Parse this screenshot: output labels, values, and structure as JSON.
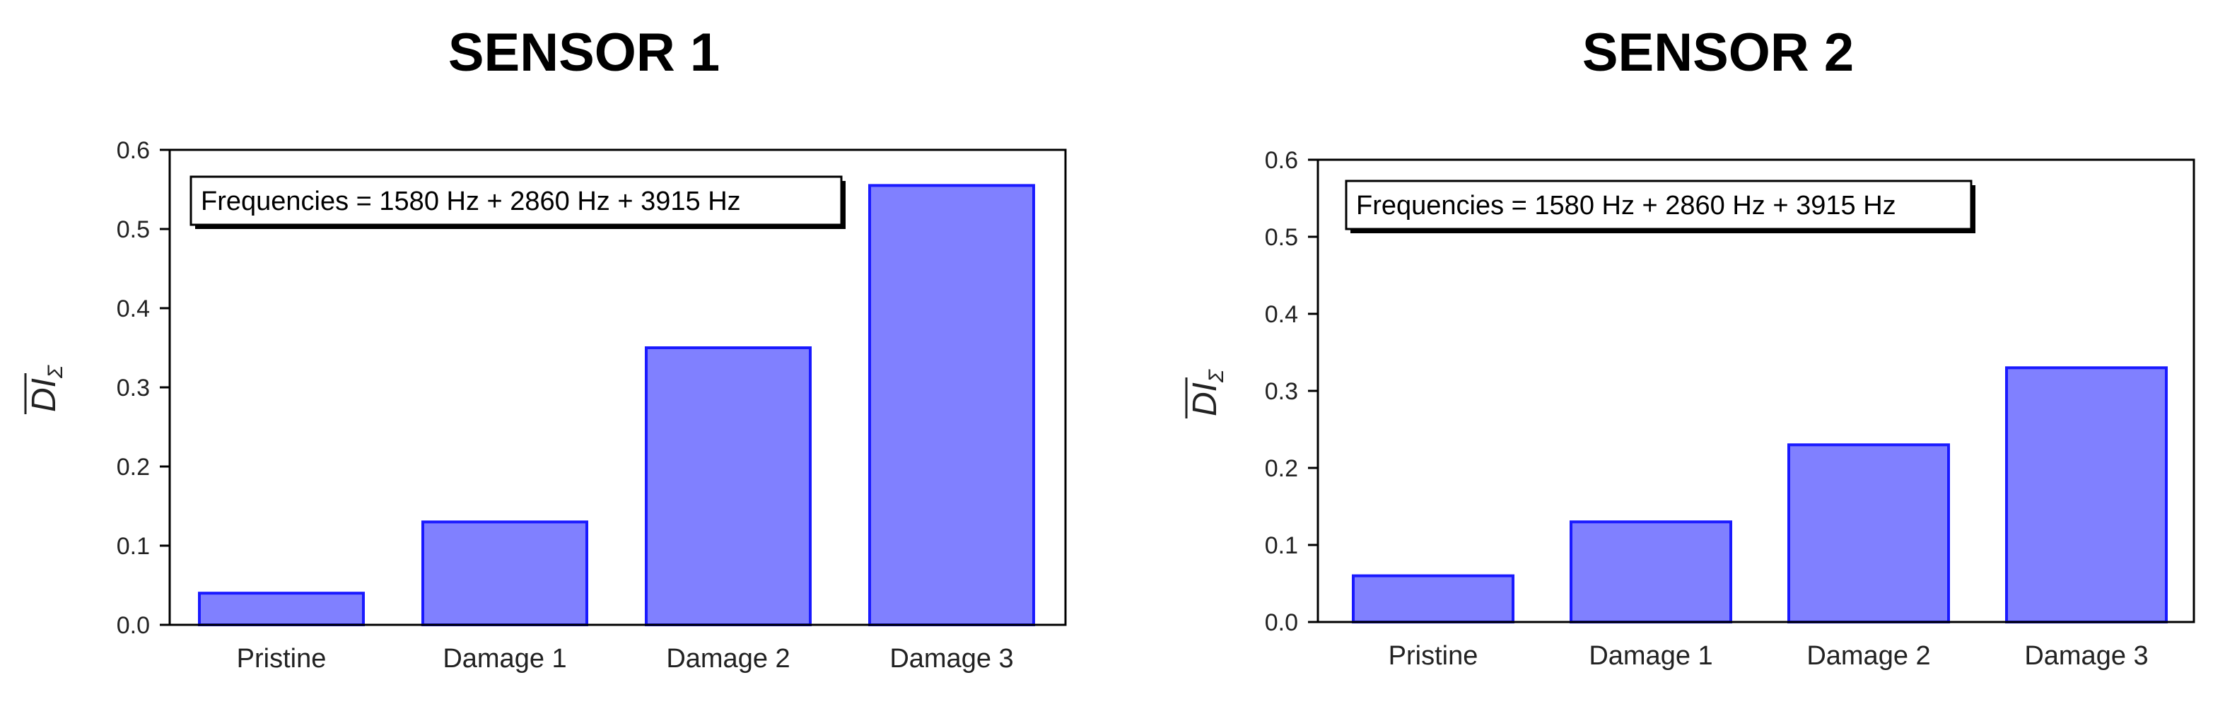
{
  "chart_data": [
    {
      "type": "bar",
      "title": "SENSOR 1",
      "categories": [
        "Pristine",
        "Damage 1",
        "Damage 2",
        "Damage 3"
      ],
      "values": [
        0.04,
        0.13,
        0.35,
        0.555
      ],
      "ylabel": "DI",
      "ylabel_subscript": "Σ",
      "ylim": [
        0,
        0.6
      ],
      "yticks": [
        "0.0",
        "0.1",
        "0.2",
        "0.3",
        "0.4",
        "0.5",
        "0.6"
      ],
      "annotation": "Frequencies = 1580 Hz + 2860 Hz + 3915 Hz",
      "bar_color": "#8080ff",
      "bar_edge_color": "#1a1aff",
      "grid": false
    },
    {
      "type": "bar",
      "title": "SENSOR 2",
      "categories": [
        "Pristine",
        "Damage 1",
        "Damage 2",
        "Damage 3"
      ],
      "values": [
        0.06,
        0.13,
        0.23,
        0.33
      ],
      "ylabel": "DI",
      "ylabel_subscript": "Σ",
      "ylim": [
        0,
        0.6
      ],
      "yticks": [
        "0.0",
        "0.1",
        "0.2",
        "0.3",
        "0.4",
        "0.5",
        "0.6"
      ],
      "annotation": "Frequencies = 1580 Hz + 2860 Hz + 3915 Hz",
      "bar_color": "#8080ff",
      "bar_edge_color": "#1a1aff",
      "grid": false
    }
  ]
}
